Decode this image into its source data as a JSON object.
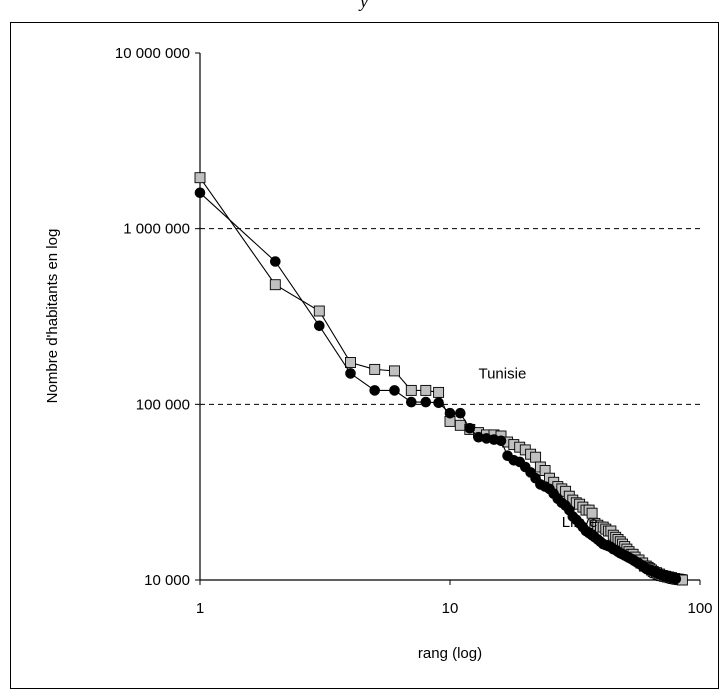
{
  "top_caption": "y",
  "chart_data": {
    "type": "line",
    "xlabel": "rang (log)",
    "ylabel": "Nombre d'habitants en log",
    "xscale": "log",
    "yscale": "log",
    "xlim": [
      1,
      100
    ],
    "ylim": [
      10000,
      10000000
    ],
    "xticks": [
      1,
      10,
      100
    ],
    "xtick_labels": [
      "1",
      "10",
      "100"
    ],
    "yticks": [
      10000,
      100000,
      1000000,
      10000000
    ],
    "ytick_labels": [
      "10 000",
      "100 000",
      "1 000 000",
      "10 000 000"
    ],
    "grid": "horizontal dashed",
    "series": [
      {
        "name": "Tunisie",
        "marker": "square",
        "color": "#c0c0c0",
        "x": [
          1,
          2,
          3,
          4,
          5,
          6,
          7,
          8,
          9,
          10,
          11,
          12,
          13,
          14,
          15,
          16,
          17,
          18,
          19,
          20,
          21,
          22,
          23,
          24,
          25,
          26,
          27,
          28,
          29,
          30,
          31,
          32,
          33,
          34,
          35,
          36,
          37,
          38,
          39,
          40,
          41,
          42,
          43,
          44,
          45,
          46,
          47,
          48,
          49,
          50,
          51,
          52,
          53,
          54,
          55,
          56,
          57,
          58,
          59,
          60,
          61,
          62,
          63,
          64,
          65,
          66,
          67,
          68,
          69,
          70,
          71,
          72,
          73,
          74,
          75,
          76,
          77,
          78,
          79,
          80,
          81,
          82,
          83,
          84,
          85
        ],
        "y": [
          1950000,
          480000,
          340000,
          173000,
          158000,
          155000,
          120000,
          120000,
          117000,
          80000,
          76000,
          72000,
          69000,
          67000,
          67000,
          66000,
          61000,
          59000,
          57000,
          55000,
          52000,
          50000,
          44000,
          42000,
          38000,
          36000,
          34000,
          33000,
          32000,
          30000,
          28500,
          27500,
          27000,
          26000,
          25000,
          25000,
          24000,
          21000,
          20500,
          20000,
          20000,
          19500,
          19000,
          19000,
          18000,
          17500,
          17000,
          16500,
          16000,
          15500,
          15000,
          14500,
          14000,
          14000,
          13500,
          13000,
          13000,
          12500,
          12500,
          12000,
          12000,
          11800,
          11600,
          11400,
          11200,
          11000,
          11000,
          10800,
          10800,
          10600,
          10600,
          10500,
          10500,
          10400,
          10400,
          10300,
          10300,
          10200,
          10200,
          10150,
          10100,
          10100,
          10050,
          10050,
          10000
        ]
      },
      {
        "name": "Libye",
        "marker": "circle",
        "color": "#000000",
        "x": [
          1,
          2,
          3,
          4,
          5,
          6,
          7,
          8,
          9,
          10,
          11,
          12,
          13,
          14,
          15,
          16,
          17,
          18,
          19,
          20,
          21,
          22,
          23,
          24,
          25,
          26,
          27,
          28,
          29,
          30,
          31,
          32,
          33,
          34,
          35,
          36,
          37,
          38,
          39,
          40,
          41,
          42,
          43,
          44,
          45,
          46,
          47,
          48,
          49,
          50,
          51,
          52,
          53,
          54,
          55,
          56,
          57,
          58,
          59,
          60,
          61,
          62,
          63,
          64,
          65,
          66,
          67,
          68,
          69,
          70,
          71,
          72,
          73,
          74,
          75,
          76,
          77,
          78,
          79,
          80
        ],
        "y": [
          1600000,
          650000,
          280000,
          150000,
          120000,
          120000,
          103000,
          103000,
          102000,
          89000,
          89000,
          73000,
          65000,
          64000,
          63000,
          62000,
          51000,
          48000,
          47000,
          44000,
          41000,
          38000,
          35000,
          34000,
          33000,
          31000,
          29000,
          27500,
          26500,
          25000,
          23000,
          22000,
          21000,
          20000,
          19000,
          18500,
          18000,
          17500,
          17000,
          16500,
          16000,
          15800,
          15600,
          15400,
          15000,
          14800,
          14500,
          14200,
          14000,
          13800,
          13600,
          13400,
          13200,
          13000,
          12800,
          12600,
          12400,
          12200,
          12000,
          11800,
          11600,
          11500,
          11400,
          11300,
          11200,
          11100,
          11000,
          10900,
          10800,
          10700,
          10600,
          10550,
          10500,
          10450,
          10400,
          10350,
          10300,
          10250,
          10200,
          10150
        ]
      }
    ],
    "annotations": [
      {
        "text": "Tunisie",
        "x": 13,
        "y": 140000
      },
      {
        "text": "Libye",
        "x": 28,
        "y": 20000
      }
    ]
  }
}
